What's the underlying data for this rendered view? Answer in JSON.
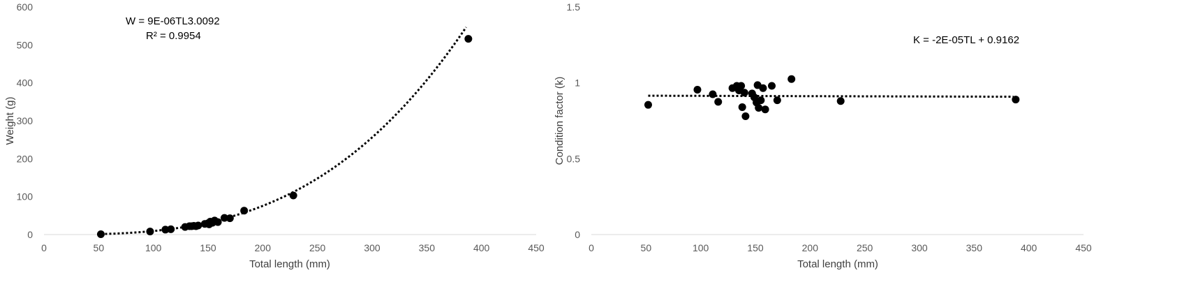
{
  "chart_data": [
    {
      "type": "scatter",
      "xlabel": "Total length (mm)",
      "ylabel": "Weight (g)",
      "xlim": [
        0,
        450
      ],
      "ylim": [
        0,
        600
      ],
      "xticks": [
        "0",
        "50",
        "100",
        "150",
        "200",
        "250",
        "300",
        "350",
        "400",
        "450"
      ],
      "yticks": [
        "0",
        "100",
        "200",
        "300",
        "400",
        "500",
        "600"
      ],
      "equation": "W = 9E-06TL3.0092",
      "r2": "R² = 0.9954",
      "trendline": {
        "type": "power",
        "a": 9e-06,
        "b": 3.0092,
        "x_range": [
          52,
          386
        ]
      },
      "points": [
        [
          52,
          1
        ],
        [
          97,
          8
        ],
        [
          111,
          13
        ],
        [
          116,
          14
        ],
        [
          129,
          20
        ],
        [
          133,
          22
        ],
        [
          135,
          22
        ],
        [
          137,
          23
        ],
        [
          139,
          22
        ],
        [
          141,
          24
        ],
        [
          147,
          28
        ],
        [
          150,
          30
        ],
        [
          151,
          27
        ],
        [
          152,
          34
        ],
        [
          154,
          31
        ],
        [
          156,
          37
        ],
        [
          159,
          33
        ],
        [
          165,
          44
        ],
        [
          170,
          43
        ],
        [
          183,
          63
        ],
        [
          228,
          103
        ],
        [
          388,
          516
        ]
      ]
    },
    {
      "type": "scatter",
      "xlabel": "Total length (mm)",
      "ylabel": "Condition factor (k)",
      "xlim": [
        0,
        450
      ],
      "ylim": [
        0,
        1.5
      ],
      "xticks": [
        "0",
        "50",
        "100",
        "150",
        "200",
        "250",
        "300",
        "350",
        "400",
        "450"
      ],
      "yticks": [
        "0",
        "0.5",
        "1",
        "1.5"
      ],
      "equation": "K = -2E-05TL + 0.9162",
      "trendline": {
        "type": "linear",
        "slope": -2e-05,
        "intercept": 0.9162,
        "x_range": [
          52,
          386
        ]
      },
      "points": [
        [
          52,
          0.855
        ],
        [
          97,
          0.955
        ],
        [
          111,
          0.925
        ],
        [
          116,
          0.875
        ],
        [
          129,
          0.965
        ],
        [
          133,
          0.98
        ],
        [
          135,
          0.95
        ],
        [
          137,
          0.98
        ],
        [
          138,
          0.84
        ],
        [
          140,
          0.935
        ],
        [
          141,
          0.78
        ],
        [
          147,
          0.93
        ],
        [
          149,
          0.905
        ],
        [
          151,
          0.87
        ],
        [
          152,
          0.985
        ],
        [
          153,
          0.835
        ],
        [
          155,
          0.885
        ],
        [
          157,
          0.965
        ],
        [
          159,
          0.825
        ],
        [
          165,
          0.98
        ],
        [
          170,
          0.885
        ],
        [
          183,
          1.025
        ],
        [
          228,
          0.88
        ],
        [
          388,
          0.89
        ]
      ]
    }
  ]
}
